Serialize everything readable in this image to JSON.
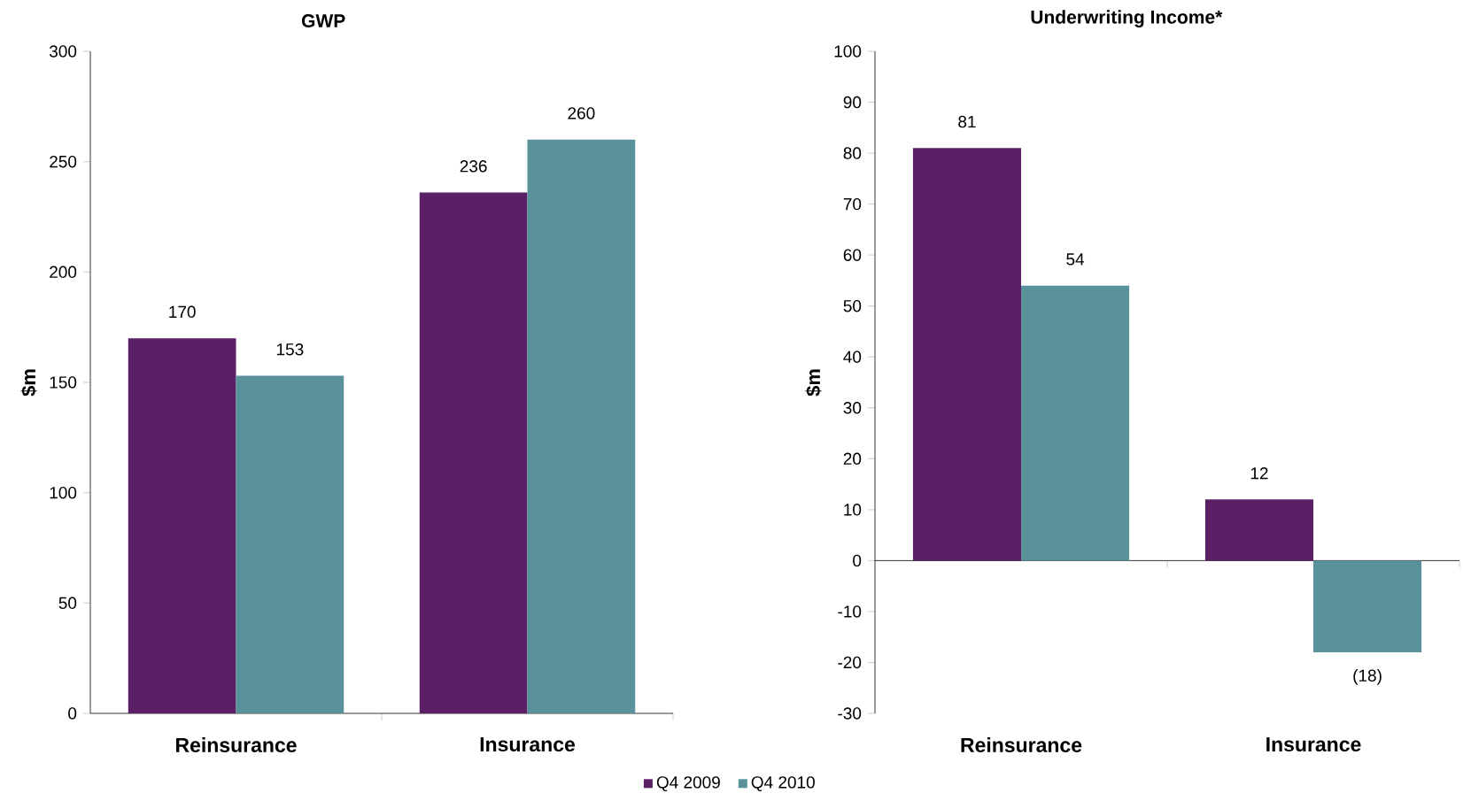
{
  "chart_data": [
    {
      "type": "bar",
      "title": "GWP",
      "ylabel": "$m",
      "categories": [
        "Reinsurance",
        "Insurance"
      ],
      "ylim": [
        0,
        300
      ],
      "yticks": [
        0,
        50,
        100,
        150,
        200,
        250,
        300
      ],
      "data_labels": true,
      "legend": "bottom",
      "series": [
        {
          "name": "Q4 2009",
          "color": "#5b1f66",
          "values": [
            170,
            236
          ]
        },
        {
          "name": "Q4 2010",
          "color": "#5a929b",
          "values": [
            153,
            260
          ]
        }
      ]
    },
    {
      "type": "bar",
      "title": "Underwriting Income*",
      "ylabel": "$m",
      "categories": [
        "Reinsurance",
        "Insurance"
      ],
      "ylim": [
        -30,
        100
      ],
      "yticks": [
        -30,
        -20,
        -10,
        0,
        10,
        20,
        30,
        40,
        50,
        60,
        70,
        80,
        90,
        100
      ],
      "series": [
        {
          "color": "#5b1f66",
          "values": [
            81,
            12
          ],
          "value_labels": [
            "81",
            "12"
          ]
        },
        {
          "color": "#5a929b",
          "values": [
            54,
            -18
          ],
          "value_labels": [
            "54",
            "(18)"
          ]
        }
      ]
    }
  ]
}
